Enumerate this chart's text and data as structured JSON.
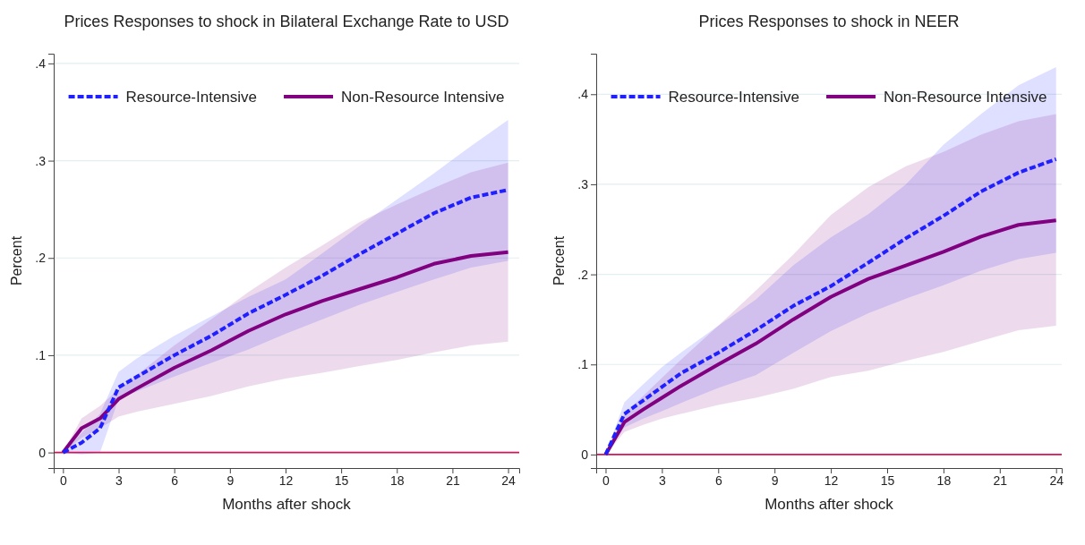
{
  "chart_data": [
    {
      "type": "line",
      "title": "Prices Responses to shock in Bilateral Exchange Rate to USD",
      "xlabel": "Months after shock",
      "ylabel": "Percent",
      "x": [
        0,
        1,
        2,
        3,
        4,
        6,
        8,
        10,
        12,
        14,
        16,
        18,
        20,
        22,
        24
      ],
      "series": [
        {
          "name": "Resource-Intensive",
          "color": "#1f1fff",
          "line_style": "dashed",
          "values": [
            0,
            0.01,
            0.025,
            0.067,
            0.078,
            0.1,
            0.12,
            0.143,
            0.162,
            0.182,
            0.204,
            0.225,
            0.246,
            0.262,
            0.27
          ],
          "lower": [
            0,
            -0.002,
            0,
            0.055,
            0.063,
            0.078,
            0.092,
            0.106,
            0.122,
            0.137,
            0.152,
            0.165,
            0.178,
            0.19,
            0.197
          ],
          "upper": [
            0,
            0.02,
            0.04,
            0.083,
            0.097,
            0.12,
            0.14,
            0.16,
            0.178,
            0.205,
            0.233,
            0.26,
            0.287,
            0.315,
            0.342
          ]
        },
        {
          "name": "Non-Resource Intensive",
          "color": "#800080",
          "line_style": "solid",
          "values": [
            0,
            0.025,
            0.035,
            0.055,
            0.066,
            0.087,
            0.105,
            0.125,
            0.142,
            0.156,
            0.168,
            0.18,
            0.194,
            0.202,
            0.206
          ],
          "lower": [
            0,
            0.015,
            0.025,
            0.037,
            0.042,
            0.05,
            0.058,
            0.068,
            0.076,
            0.082,
            0.089,
            0.095,
            0.103,
            0.11,
            0.114
          ],
          "upper": [
            0,
            0.035,
            0.048,
            0.065,
            0.08,
            0.11,
            0.137,
            0.165,
            0.19,
            0.213,
            0.237,
            0.255,
            0.272,
            0.288,
            0.298
          ]
        }
      ],
      "xlim": [
        -0.5,
        24.6
      ],
      "xticks": [
        0,
        3,
        6,
        9,
        12,
        15,
        18,
        21,
        24
      ],
      "ylim": [
        -0.016,
        0.41
      ],
      "yticks": [
        0,
        {
          "value": 0.1,
          "label": ".1"
        },
        {
          "value": 0.2,
          "label": ".2"
        },
        {
          "value": 0.3,
          "label": ".3"
        },
        {
          "value": 0.4,
          "label": ".4"
        }
      ],
      "grid": "y",
      "legend": "top",
      "marker": "none",
      "ref_lines": [
        {
          "axis": "y",
          "value": 0,
          "color": "#d4145a"
        }
      ]
    },
    {
      "type": "line",
      "title": "Prices Responses to shock in NEER",
      "xlabel": "Months after shock",
      "ylabel": "Percent",
      "x": [
        0,
        1,
        2,
        3,
        4,
        6,
        8,
        10,
        12,
        14,
        16,
        18,
        20,
        22,
        24
      ],
      "series": [
        {
          "name": "Resource-Intensive",
          "color": "#1f1fff",
          "line_style": "dashed",
          "values": [
            0,
            0.045,
            0.06,
            0.075,
            0.09,
            0.113,
            0.138,
            0.165,
            0.187,
            0.213,
            0.24,
            0.265,
            0.292,
            0.313,
            0.328
          ],
          "lower": [
            0,
            0.03,
            0.04,
            0.048,
            0.057,
            0.074,
            0.088,
            0.113,
            0.137,
            0.157,
            0.173,
            0.188,
            0.204,
            0.217,
            0.224
          ],
          "upper": [
            0,
            0.058,
            0.078,
            0.097,
            0.113,
            0.143,
            0.172,
            0.21,
            0.241,
            0.267,
            0.3,
            0.344,
            0.378,
            0.41,
            0.43
          ]
        },
        {
          "name": "Non-Resource Intensive",
          "color": "#800080",
          "line_style": "solid",
          "values": [
            0,
            0.036,
            0.05,
            0.063,
            0.076,
            0.1,
            0.123,
            0.15,
            0.175,
            0.195,
            0.21,
            0.225,
            0.242,
            0.255,
            0.26
          ],
          "lower": [
            0,
            0.025,
            0.033,
            0.04,
            0.045,
            0.055,
            0.063,
            0.073,
            0.086,
            0.093,
            0.104,
            0.114,
            0.126,
            0.138,
            0.143
          ],
          "upper": [
            0,
            0.045,
            0.065,
            0.085,
            0.105,
            0.143,
            0.182,
            0.222,
            0.266,
            0.297,
            0.32,
            0.336,
            0.355,
            0.37,
            0.378
          ]
        }
      ],
      "xlim": [
        -0.5,
        24.3
      ],
      "xticks": [
        0,
        3,
        6,
        9,
        12,
        15,
        18,
        21,
        24
      ],
      "ylim": [
        -0.015,
        0.445
      ],
      "yticks": [
        0,
        {
          "value": 0.1,
          "label": ".1"
        },
        {
          "value": 0.2,
          "label": ".2"
        },
        {
          "value": 0.3,
          "label": ".3"
        },
        {
          "value": 0.4,
          "label": ".4"
        }
      ],
      "grid": "y",
      "legend": "top",
      "marker": "none",
      "ref_lines": [
        {
          "axis": "y",
          "value": 0,
          "color": "#d4145a"
        }
      ]
    }
  ]
}
